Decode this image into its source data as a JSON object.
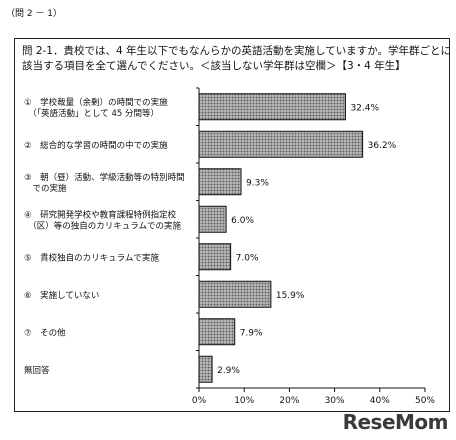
{
  "figure_label": "（問 2 － 1）",
  "question": {
    "line1": "問 2-1．貴校では、4 年生以下でもなんらかの英語活動を実施していますか。学年群ごとに",
    "line2": "該当する項目を全て選んでください。＜該当しない学年群は空欄＞【3・4 年生】"
  },
  "watermark": "ReseMom",
  "chart_data": {
    "type": "bar",
    "orientation": "horizontal",
    "title": "問 2-1．貴校では、4 年生以下でもなんらかの英語活動を実施していますか。学年群ごとに該当する項目を全て選んでください。＜該当しない学年群は空欄＞【3・4 年生】",
    "categories": [
      [
        "①　学校裁量（余剰）の時間での実施",
        "　（「英語活動」として 45 分間等）"
      ],
      [
        "②　総合的な学習の時間の中での実施"
      ],
      [
        "③　朝（昼）活動、学級活動等の特別時間",
        "　での実施"
      ],
      [
        "④　研究開発学校や教育課程特例指定校",
        "　（区）等の独自のカリキュラムでの実施"
      ],
      [
        "⑤　貴校独自のカリキュラムで実施"
      ],
      [
        "⑥　実施していない"
      ],
      [
        "⑦　その他"
      ],
      [
        "無回答"
      ]
    ],
    "values": [
      32.4,
      36.2,
      9.3,
      6.0,
      7.0,
      15.9,
      7.9,
      2.9
    ],
    "value_labels": [
      "32.4%",
      "36.2%",
      "9.3%",
      "6.0%",
      "7.0%",
      "15.9%",
      "7.9%",
      "2.9%"
    ],
    "xlim": [
      0,
      50
    ],
    "xticks": [
      0,
      10,
      20,
      30,
      40,
      50
    ],
    "xtick_labels": [
      "0%",
      "10%",
      "20%",
      "30%",
      "40%",
      "50%"
    ],
    "grid": false,
    "bar_fill": "#8a8a8a",
    "bar_stroke": "#111111"
  }
}
